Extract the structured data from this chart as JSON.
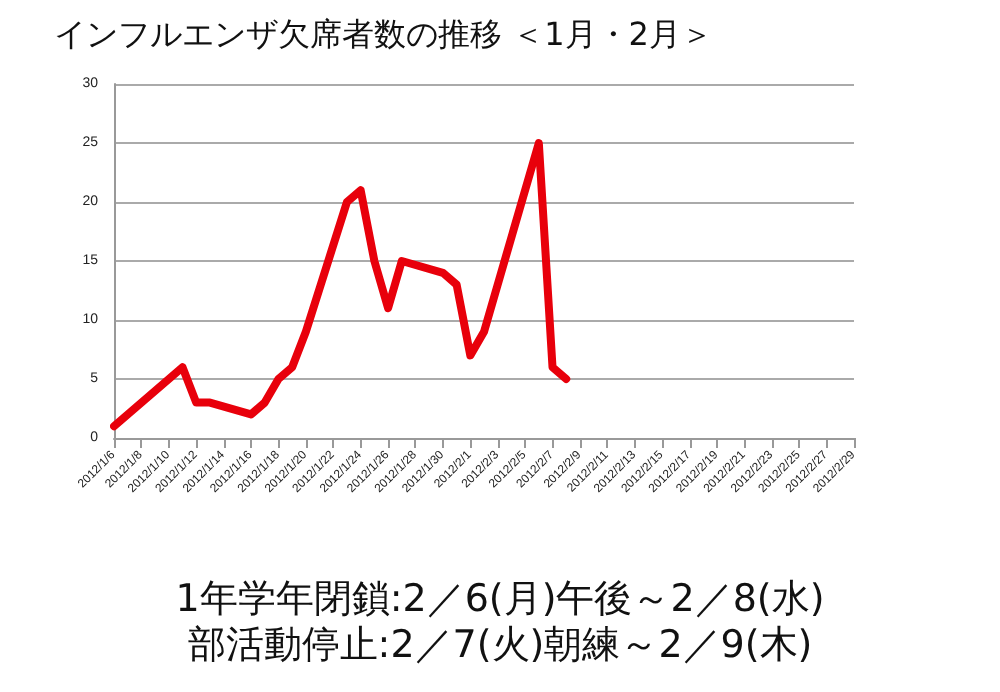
{
  "chart_data": {
    "type": "line",
    "title": "インフルエンザ欠席者数の推移 ＜1月・2月＞",
    "x": [
      "2012-01-06",
      "2012-01-11",
      "2012-01-12",
      "2012-01-13",
      "2012-01-16",
      "2012-01-17",
      "2012-01-18",
      "2012-01-19",
      "2012-01-20",
      "2012-01-23",
      "2012-01-24",
      "2012-01-25",
      "2012-01-26",
      "2012-01-27",
      "2012-01-30",
      "2012-01-31",
      "2012-02-01",
      "2012-02-02",
      "2012-02-06",
      "2012-02-07",
      "2012-02-08"
    ],
    "series": [
      {
        "color": "#e8000b",
        "values": [
          1,
          6,
          3,
          3,
          2,
          3,
          5,
          6,
          9,
          20,
          21,
          15,
          11,
          15,
          14,
          13,
          7,
          9,
          25,
          6,
          5
        ]
      }
    ],
    "xlim": [
      "2012-01-06",
      "2012-02-29"
    ],
    "xticks": [
      {
        "value": "2012-01-06",
        "label": "2012/1/6"
      },
      {
        "value": "2012-01-08",
        "label": "2012/1/8"
      },
      {
        "value": "2012-01-10",
        "label": "2012/1/10"
      },
      {
        "value": "2012-01-12",
        "label": "2012/1/12"
      },
      {
        "value": "2012-01-14",
        "label": "2012/1/14"
      },
      {
        "value": "2012-01-16",
        "label": "2012/1/16"
      },
      {
        "value": "2012-01-18",
        "label": "2012/1/18"
      },
      {
        "value": "2012-01-20",
        "label": "2012/1/20"
      },
      {
        "value": "2012-01-22",
        "label": "2012/1/22"
      },
      {
        "value": "2012-01-24",
        "label": "2012/1/24"
      },
      {
        "value": "2012-01-26",
        "label": "2012/1/26"
      },
      {
        "value": "2012-01-28",
        "label": "2012/1/28"
      },
      {
        "value": "2012-01-30",
        "label": "2012/1/30"
      },
      {
        "value": "2012-02-01",
        "label": "2012/2/1"
      },
      {
        "value": "2012-02-03",
        "label": "2012/2/3"
      },
      {
        "value": "2012-02-05",
        "label": "2012/2/5"
      },
      {
        "value": "2012-02-07",
        "label": "2012/2/7"
      },
      {
        "value": "2012-02-09",
        "label": "2012/2/9"
      },
      {
        "value": "2012-02-11",
        "label": "2012/2/11"
      },
      {
        "value": "2012-02-13",
        "label": "2012/2/13"
      },
      {
        "value": "2012-02-15",
        "label": "2012/2/15"
      },
      {
        "value": "2012-02-17",
        "label": "2012/2/17"
      },
      {
        "value": "2012-02-19",
        "label": "2012/2/19"
      },
      {
        "value": "2012-02-21",
        "label": "2012/2/21"
      },
      {
        "value": "2012-02-23",
        "label": "2012/2/23"
      },
      {
        "value": "2012-02-25",
        "label": "2012/2/25"
      },
      {
        "value": "2012-02-27",
        "label": "2012/2/27"
      },
      {
        "value": "2012-02-29",
        "label": "2012/2/29"
      }
    ],
    "ylim": [
      0,
      30
    ],
    "yticks": [
      0,
      5,
      10,
      15,
      20,
      25,
      30
    ],
    "grid": "y",
    "marker": "none",
    "line_style": "solid",
    "annotations": [
      "1年学年閉鎖:2／6(月)午後～2／8(水)",
      "部活動停止:2／7(火)朝練～2／9(木)"
    ]
  }
}
